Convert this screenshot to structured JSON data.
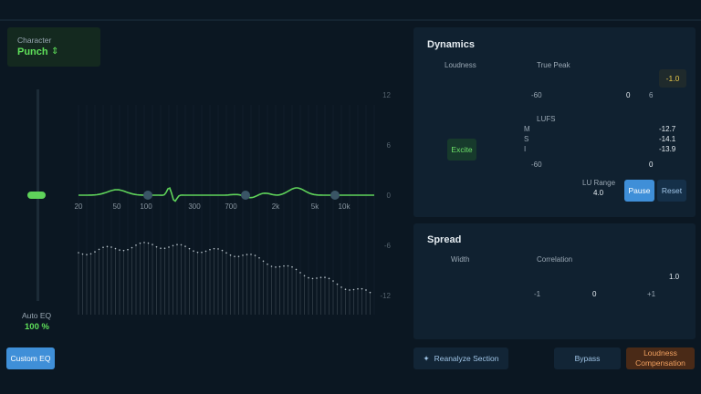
{
  "character": {
    "label": "Character",
    "value": "Punch"
  },
  "eq": {
    "gain_ticks": [
      "12",
      "6",
      "0",
      "-6",
      "-12"
    ],
    "freq_ticks": [
      "20",
      "50",
      "100",
      "300",
      "700",
      "2k",
      "5k",
      "10k"
    ]
  },
  "auto_eq": {
    "label": "Auto EQ",
    "value": "100 %"
  },
  "custom_eq": "Custom EQ",
  "dynamics": {
    "title": "Dynamics",
    "loudness": "Loudness",
    "excite": "Excite",
    "true_peak": {
      "label": "True Peak",
      "scale": [
        "-60",
        "0",
        "6"
      ],
      "value": "-1.0"
    },
    "lufs": {
      "label": "LUFS",
      "rows": [
        {
          "label": "M",
          "value": "-12.7"
        },
        {
          "label": "S",
          "value": "-14.1"
        },
        {
          "label": "I",
          "value": "-13.9"
        }
      ],
      "scale": [
        "-60",
        "0"
      ]
    },
    "lu_range": {
      "label": "LU Range",
      "value": "4.0"
    },
    "pause": "Pause",
    "reset": "Reset"
  },
  "spread": {
    "title": "Spread",
    "width": "Width",
    "correlation": {
      "label": "Correlation",
      "scale": [
        "-1",
        "0",
        "+1"
      ],
      "value": "1.0"
    }
  },
  "footer": {
    "reanalyze": "Reanalyze Section",
    "bypass": "Bypass",
    "compensation": [
      "Loudness",
      "Compensation"
    ]
  }
}
